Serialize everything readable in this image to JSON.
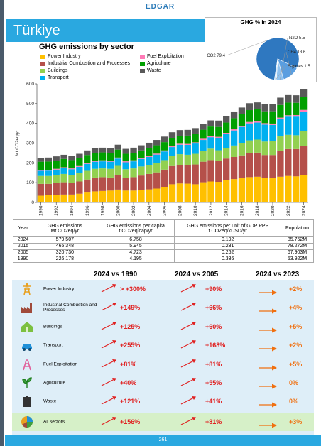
{
  "logo": "EDGAR",
  "country": "Türkiye",
  "pie": {
    "title": "GHG % in 2024",
    "slices": [
      {
        "label": "CO2",
        "value": 79.4,
        "color": "#2f78c0"
      },
      {
        "label": "CH4",
        "value": 13.6,
        "color": "#5a9ee0"
      },
      {
        "label": "N2O",
        "value": 5.5,
        "color": "#8fc2f0"
      },
      {
        "label": "F-gases",
        "value": 1.5,
        "color": "#c8e2f8"
      }
    ]
  },
  "chart_data": {
    "type": "bar",
    "stacked": true,
    "title": "GHG emissions by sector",
    "ylabel": "Mt CO2eq/yr",
    "ylim": [
      0,
      600
    ],
    "yticks": [
      "0",
      "100",
      "200",
      "300",
      "400",
      "500",
      "600"
    ],
    "x": [
      1990,
      1991,
      1992,
      1993,
      1994,
      1995,
      1996,
      1997,
      1998,
      1999,
      2000,
      2001,
      2002,
      2003,
      2004,
      2005,
      2006,
      2007,
      2008,
      2009,
      2010,
      2011,
      2012,
      2013,
      2014,
      2015,
      2016,
      2017,
      2018,
      2019,
      2020,
      2021,
      2022,
      2023,
      2024
    ],
    "xticks": [
      "1990",
      "1992",
      "1994",
      "1996",
      "1998",
      "2000",
      "2002",
      "2004",
      "2006",
      "2008",
      "2010",
      "2012",
      "2014",
      "2016",
      "2018",
      "2020",
      "2022",
      "2024"
    ],
    "legend_placement": "top-left",
    "series": [
      {
        "name": "Power Industry",
        "color": "#ffc000",
        "values": [
          34,
          36,
          38,
          40,
          40,
          44,
          50,
          56,
          58,
          60,
          65,
          60,
          60,
          64,
          66,
          70,
          76,
          92,
          96,
          95,
          92,
          102,
          106,
          104,
          112,
          118,
          122,
          128,
          130,
          124,
          122,
          130,
          134,
          132,
          140
        ]
      },
      {
        "name": "Industrial Combustion and Processes",
        "color": "#b5504a",
        "values": [
          60,
          58,
          60,
          62,
          58,
          62,
          66,
          70,
          70,
          66,
          74,
          64,
          68,
          72,
          78,
          82,
          90,
          92,
          94,
          92,
          100,
          104,
          108,
          106,
          110,
          112,
          116,
          120,
          122,
          116,
          118,
          130,
          136,
          138,
          144
        ]
      },
      {
        "name": "Buildings",
        "color": "#92d050",
        "values": [
          40,
          40,
          40,
          42,
          40,
          42,
          44,
          44,
          44,
          44,
          46,
          44,
          44,
          46,
          46,
          48,
          48,
          50,
          54,
          54,
          54,
          56,
          58,
          54,
          54,
          58,
          62,
          66,
          66,
          68,
          70,
          74,
          72,
          70,
          76
        ]
      },
      {
        "name": "Transport",
        "color": "#00b0f0",
        "values": [
          26,
          27,
          28,
          30,
          30,
          32,
          35,
          36,
          36,
          36,
          37,
          35,
          36,
          38,
          40,
          42,
          44,
          46,
          48,
          50,
          52,
          54,
          58,
          62,
          70,
          76,
          82,
          86,
          86,
          86,
          82,
          88,
          92,
          94,
          100
        ]
      },
      {
        "name": "Fuel Exploitation",
        "color": "#ff7ab6",
        "values": [
          4,
          4,
          4,
          4,
          4,
          4,
          5,
          5,
          5,
          5,
          5,
          5,
          5,
          5,
          5,
          5,
          5,
          5,
          5,
          5,
          6,
          6,
          6,
          6,
          6,
          6,
          6,
          7,
          7,
          7,
          7,
          7,
          7,
          8,
          8
        ]
      },
      {
        "name": "Agriculture",
        "color": "#00a000",
        "values": [
          42,
          42,
          42,
          42,
          42,
          40,
          40,
          40,
          40,
          40,
          40,
          38,
          38,
          38,
          40,
          42,
          42,
          42,
          40,
          42,
          42,
          46,
          48,
          50,
          52,
          56,
          58,
          60,
          60,
          60,
          62,
          64,
          64,
          62,
          64
        ]
      },
      {
        "name": "Waste",
        "color": "#595959",
        "values": [
          20,
          20,
          21,
          21,
          22,
          22,
          23,
          23,
          24,
          24,
          25,
          25,
          26,
          26,
          27,
          27,
          28,
          28,
          29,
          29,
          30,
          30,
          31,
          32,
          32,
          34,
          34,
          35,
          35,
          36,
          36,
          37,
          38,
          38,
          40
        ]
      }
    ]
  },
  "table": {
    "headers": [
      "Year",
      "GHG emissions Mt CO2eq/yr",
      "GHG emissions per capita t CO2eq/cap/yr",
      "GHG emissions per unit of GDP PPP t CO2eq/kUSD/yr",
      "Population"
    ],
    "rows": [
      [
        "2024",
        "579.507",
        "6.758",
        "0.192",
        "85.752M"
      ],
      [
        "2015",
        "465.348",
        "5.945",
        "0.231",
        "78.272M"
      ],
      [
        "2005",
        "320.730",
        "4.723",
        "0.262",
        "67.903M"
      ],
      [
        "1990",
        "226.178",
        "4.195",
        "0.336",
        "53.922M"
      ]
    ]
  },
  "comparison": {
    "headers": [
      "2024 vs 1990",
      "2024 vs 2005",
      "2024 vs 2023"
    ],
    "rows": [
      {
        "sector": "Power Industry",
        "icon": "power-tower-icon",
        "v1990": "> +300%",
        "v2005": "+90%",
        "v2023": "+2%",
        "t2023": "flat"
      },
      {
        "sector": "Industrial Combustion and Processes",
        "icon": "factory-icon",
        "v1990": "+149%",
        "v2005": "+66%",
        "v2023": "+4%",
        "t2023": "flat"
      },
      {
        "sector": "Buildings",
        "icon": "house-icon",
        "v1990": "+125%",
        "v2005": "+60%",
        "v2023": "+5%",
        "t2023": "flat"
      },
      {
        "sector": "Transport",
        "icon": "car-icon",
        "v1990": "+255%",
        "v2005": "+168%",
        "v2023": "+2%",
        "t2023": "flat"
      },
      {
        "sector": "Fuel Exploitation",
        "icon": "oil-rig-icon",
        "v1990": "+81%",
        "v2005": "+81%",
        "v2023": "+5%",
        "t2023": "flat"
      },
      {
        "sector": "Agriculture",
        "icon": "plant-icon",
        "v1990": "+40%",
        "v2005": "+55%",
        "v2023": "0%",
        "t2023": "flat"
      },
      {
        "sector": "Waste",
        "icon": "trash-bin-icon",
        "v1990": "+121%",
        "v2005": "+41%",
        "v2023": "0%",
        "t2023": "flat"
      },
      {
        "sector": "All sectors",
        "icon": "pie-chart-icon",
        "v1990": "+156%",
        "v2005": "+81%",
        "v2023": "+3%",
        "t2023": "flat"
      }
    ]
  },
  "page_number": "261"
}
